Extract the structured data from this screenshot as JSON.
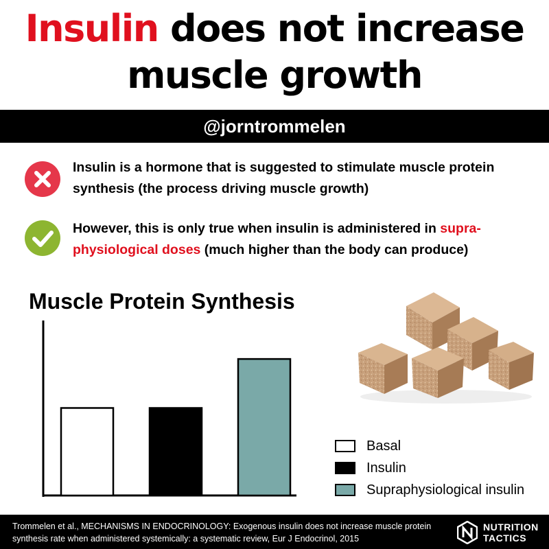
{
  "header": {
    "title_highlight": "Insulin",
    "title_rest_line1": " does not increase",
    "title_line2": "muscle growth",
    "highlight_color": "#e0101e",
    "handle": "@jorntrommelen"
  },
  "points": [
    {
      "icon": "cross-circle-icon",
      "icon_color": "#e5374a",
      "text": "Insulin is a hormone that is suggested to stimulate muscle protein synthesis (the process driving muscle growth)"
    },
    {
      "icon": "check-circle-icon",
      "icon_color": "#8db531",
      "text_before": "However, this is only true when insulin is administered in ",
      "text_red": "supra-physiological doses",
      "text_after": " (much higher than the body can produce)"
    }
  ],
  "chart_data": {
    "type": "bar",
    "title": "Muscle Protein Synthesis",
    "categories": [
      "Basal",
      "Insulin",
      "Supraphysiological insulin"
    ],
    "values": [
      50,
      50,
      78
    ],
    "colors": [
      "#ffffff",
      "#000000",
      "#7aa9a8"
    ],
    "ylim": [
      0,
      100
    ],
    "xlabel": "",
    "ylabel": "",
    "grid": false,
    "legend_position": "bottom-right",
    "legend": [
      {
        "label": "Basal",
        "color": "#ffffff"
      },
      {
        "label": "Insulin",
        "color": "#000000"
      },
      {
        "label": "Supraphysiological insulin",
        "color": "#7aa9a8"
      }
    ]
  },
  "image": {
    "subject": "brown-sugar-cubes"
  },
  "footer": {
    "citation": "Trommelen et al., MECHANISMS IN ENDOCRINOLOGY: Exogenous insulin does not increase muscle protein synthesis rate when administered systemically: a systematic review, Eur J Endocrinol, 2015",
    "logo_line1": "NUTRITION",
    "logo_line2": "TACTICS"
  }
}
